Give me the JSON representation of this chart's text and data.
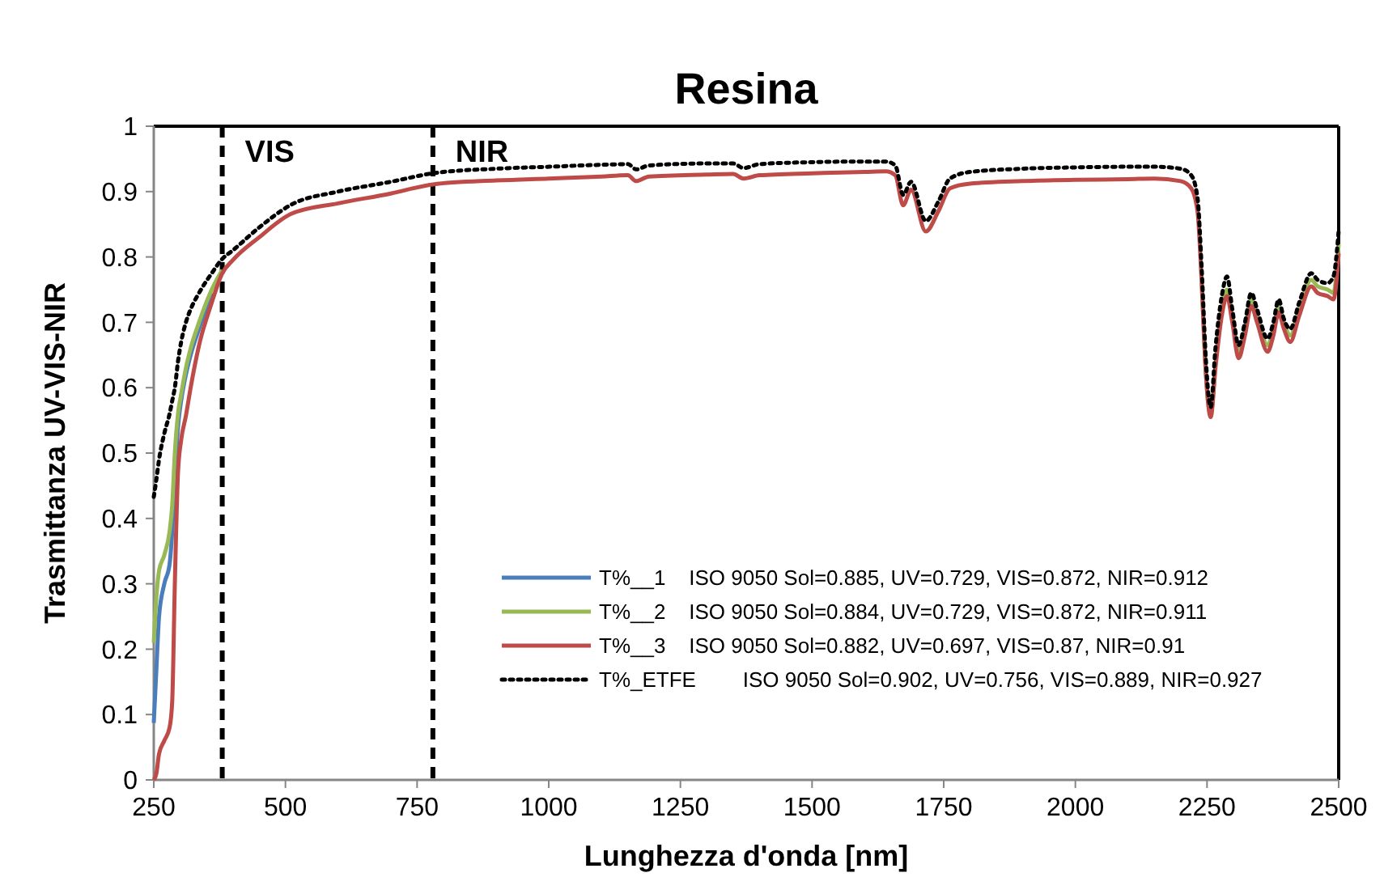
{
  "chart_data": {
    "type": "line",
    "title": "Resina",
    "xlabel": "Lunghezza d'onda [nm]",
    "ylabel": "Trasmittanza UV-VIS-NIR",
    "xlim": [
      250,
      2500
    ],
    "ylim": [
      0,
      1
    ],
    "xticks": [
      250,
      500,
      750,
      1000,
      1250,
      1500,
      1750,
      2000,
      2250,
      2500
    ],
    "yticks": [
      0,
      0.1,
      0.2,
      0.3,
      0.4,
      0.5,
      0.6,
      0.7,
      0.8,
      0.9,
      1
    ],
    "grid": false,
    "legend": "bottom right",
    "marker": "none",
    "ref_lines": [
      {
        "axis": "x",
        "value": 380,
        "label": "VIS",
        "color": "#000000",
        "line_style": "dashed"
      },
      {
        "axis": "x",
        "value": 780,
        "label": "NIR",
        "color": "#000000",
        "line_style": "dashed"
      }
    ],
    "x": [
      250,
      255,
      260,
      270,
      280,
      285,
      290,
      296,
      302,
      311,
      320,
      336,
      360,
      380,
      400,
      450,
      511,
      600,
      700,
      780,
      900,
      1000,
      1100,
      1150,
      1166,
      1190,
      1300,
      1350,
      1370,
      1400,
      1500,
      1600,
      1640,
      1658,
      1673,
      1688,
      1716,
      1740,
      1762,
      1800,
      1900,
      2000,
      2100,
      2150,
      2200,
      2220,
      2232,
      2240,
      2248,
      2257,
      2266,
      2278,
      2288,
      2298,
      2310,
      2322,
      2334,
      2345,
      2365,
      2376,
      2386,
      2396,
      2408,
      2425,
      2448,
      2460,
      2479,
      2490,
      2500
    ],
    "series": [
      {
        "name": "T%__1    ISO 9050 Sol=0.885, UV=0.729, VIS=0.872, NIR=0.912",
        "color": "#4a7ebb",
        "line_style": "solid",
        "values": [
          0.087,
          0.17,
          0.25,
          0.3,
          0.33,
          0.38,
          0.46,
          0.54,
          0.58,
          0.62,
          0.65,
          0.69,
          0.745,
          null,
          null,
          null,
          null,
          null,
          null,
          null,
          null,
          null,
          null,
          null,
          null,
          null,
          null,
          null,
          null,
          null,
          null,
          null,
          null,
          null,
          null,
          null,
          null,
          null,
          null,
          null,
          null,
          null,
          null,
          null,
          null,
          null,
          null,
          null,
          null,
          null,
          null,
          null,
          null,
          null,
          null,
          null,
          null,
          null,
          null,
          null,
          null,
          null,
          null,
          null,
          null,
          null,
          null,
          null,
          null
        ]
      },
      {
        "name": "T%__2    ISO 9050 Sol=0.884, UV=0.729, VIS=0.872, NIR=0.911",
        "color": "#98b954",
        "line_style": "solid",
        "values": [
          0.21,
          0.28,
          0.32,
          0.344,
          0.38,
          0.42,
          0.5,
          0.56,
          0.59,
          0.63,
          0.66,
          0.7,
          0.75,
          0.78,
          null,
          null,
          null,
          null,
          null,
          null,
          null,
          null,
          null,
          null,
          null,
          null,
          null,
          null,
          null,
          null,
          null,
          null,
          null,
          null,
          null,
          null,
          null,
          null,
          null,
          null,
          null,
          null,
          null,
          null,
          null,
          null,
          null,
          0.76,
          0.62,
          0.558,
          0.635,
          0.72,
          0.75,
          0.71,
          0.655,
          0.69,
          0.735,
          0.71,
          0.665,
          0.69,
          0.725,
          0.7,
          0.68,
          0.72,
          0.765,
          0.755,
          0.75,
          0.745,
          0.82
        ]
      },
      {
        "name": "T%__3    ISO 9050 Sol=0.882, UV=0.697, VIS=0.87, NIR=0.91",
        "color": "#be4b48",
        "line_style": "solid",
        "values": [
          0.0,
          0.01,
          0.04,
          0.06,
          0.08,
          0.12,
          0.3,
          0.47,
          0.52,
          0.557,
          0.6,
          0.665,
          0.73,
          0.775,
          0.795,
          0.83,
          0.866,
          0.882,
          0.897,
          0.911,
          0.917,
          0.92,
          0.923,
          0.925,
          0.916,
          0.923,
          0.926,
          0.927,
          0.92,
          0.925,
          0.928,
          0.93,
          0.931,
          0.925,
          0.879,
          0.903,
          0.839,
          0.87,
          0.905,
          0.912,
          0.916,
          0.918,
          0.919,
          0.92,
          0.916,
          0.905,
          0.87,
          0.76,
          0.62,
          0.555,
          0.63,
          0.71,
          0.74,
          0.7,
          0.645,
          0.68,
          0.725,
          0.7,
          0.655,
          0.68,
          0.715,
          0.69,
          0.67,
          0.71,
          0.755,
          0.745,
          0.74,
          0.735,
          0.805
        ]
      },
      {
        "name": "T%_ETFE        ISO 9050 Sol=0.902, UV=0.756, VIS=0.889, NIR=0.927",
        "color": "#000000",
        "line_style": "dotted",
        "values": [
          0.433,
          0.46,
          0.49,
          0.53,
          0.56,
          0.58,
          0.6,
          0.64,
          0.67,
          0.7,
          0.72,
          0.745,
          0.775,
          0.797,
          0.81,
          0.845,
          0.88,
          0.9,
          0.915,
          0.928,
          0.935,
          0.938,
          0.941,
          0.942,
          0.934,
          0.94,
          0.943,
          0.943,
          0.936,
          0.942,
          0.945,
          0.946,
          0.946,
          0.94,
          0.895,
          0.915,
          0.855,
          0.885,
          0.92,
          0.93,
          0.935,
          0.937,
          0.938,
          0.938,
          0.935,
          0.925,
          0.89,
          0.78,
          0.64,
          0.57,
          0.66,
          0.74,
          0.77,
          0.72,
          0.665,
          0.7,
          0.745,
          0.72,
          0.675,
          0.7,
          0.735,
          0.705,
          0.69,
          0.73,
          0.775,
          0.765,
          0.76,
          0.77,
          0.84
        ]
      }
    ]
  }
}
